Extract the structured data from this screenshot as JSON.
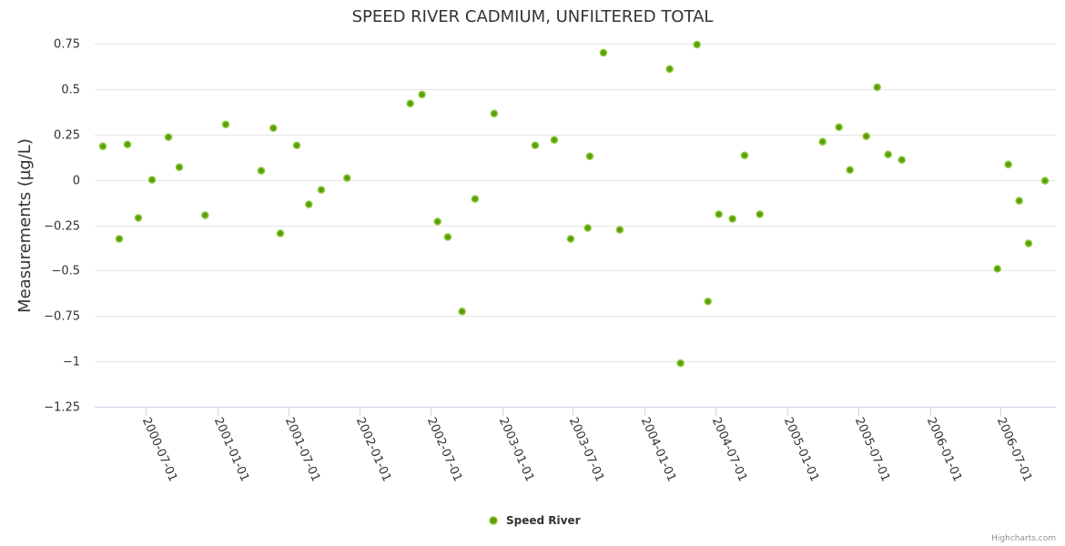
{
  "chart_data": {
    "type": "scatter",
    "title": "SPEED RIVER CADMIUM, UNFILTERED TOTAL",
    "xlabel": "",
    "ylabel": "Measurements (µg/L)",
    "ylim": [
      -1.25,
      0.75
    ],
    "xlim": [
      "2000-02-21",
      "2006-11-20"
    ],
    "yticks": [
      0.75,
      0.5,
      0.25,
      0,
      -0.25,
      -0.5,
      -0.75,
      -1,
      -1.25
    ],
    "ytick_labels": [
      "0.75",
      "0.5",
      "0.25",
      "0",
      "−0.25",
      "−0.5",
      "−0.75",
      "−1",
      "−1.25"
    ],
    "xticks": [
      "2000-07-01",
      "2001-01-01",
      "2001-07-01",
      "2002-01-01",
      "2002-07-01",
      "2003-01-01",
      "2003-07-01",
      "2004-01-01",
      "2004-07-01",
      "2005-01-01",
      "2005-07-01",
      "2006-01-01",
      "2006-07-01"
    ],
    "grid": true,
    "legend_position": "bottom-center",
    "series": [
      {
        "name": "Speed River",
        "color": "#5a9e0a",
        "points": [
          [
            "2000-03-13",
            0.185
          ],
          [
            "2000-04-24",
            -0.325
          ],
          [
            "2000-05-15",
            0.195
          ],
          [
            "2000-06-12",
            -0.21
          ],
          [
            "2000-07-17",
            0.0
          ],
          [
            "2000-08-28",
            0.235
          ],
          [
            "2000-09-25",
            0.07
          ],
          [
            "2000-11-30",
            -0.195
          ],
          [
            "2001-01-22",
            0.305
          ],
          [
            "2001-04-23",
            0.05
          ],
          [
            "2001-05-24",
            0.285
          ],
          [
            "2001-06-11",
            -0.295
          ],
          [
            "2001-07-23",
            0.19
          ],
          [
            "2001-08-23",
            -0.135
          ],
          [
            "2001-09-24",
            -0.055
          ],
          [
            "2001-11-29",
            0.01
          ],
          [
            "2002-05-10",
            0.42
          ],
          [
            "2002-06-09",
            0.47
          ],
          [
            "2002-07-19",
            -0.23
          ],
          [
            "2002-08-14",
            -0.315
          ],
          [
            "2002-09-20",
            -0.725
          ],
          [
            "2002-10-23",
            -0.105
          ],
          [
            "2002-12-11",
            0.365
          ],
          [
            "2003-03-26",
            0.19
          ],
          [
            "2003-05-14",
            0.22
          ],
          [
            "2003-06-25",
            -0.325
          ],
          [
            "2003-08-08",
            -0.265
          ],
          [
            "2003-08-13",
            0.13
          ],
          [
            "2003-09-17",
            0.7
          ],
          [
            "2003-10-29",
            -0.275
          ],
          [
            "2004-03-05",
            0.61
          ],
          [
            "2004-04-02",
            -1.01
          ],
          [
            "2004-05-14",
            0.745
          ],
          [
            "2004-06-11",
            -0.67
          ],
          [
            "2004-07-09",
            -0.19
          ],
          [
            "2004-08-13",
            -0.215
          ],
          [
            "2004-09-13",
            0.135
          ],
          [
            "2004-10-22",
            -0.19
          ],
          [
            "2005-04-01",
            0.21
          ],
          [
            "2005-05-13",
            0.29
          ],
          [
            "2005-06-10",
            0.055
          ],
          [
            "2005-07-22",
            0.24
          ],
          [
            "2005-08-19",
            0.51
          ],
          [
            "2005-09-16",
            0.14
          ],
          [
            "2005-10-21",
            0.11
          ],
          [
            "2006-06-23",
            -0.49
          ],
          [
            "2006-07-21",
            0.085
          ],
          [
            "2006-08-18",
            -0.115
          ],
          [
            "2006-09-11",
            -0.35
          ],
          [
            "2006-10-23",
            -0.005
          ]
        ]
      }
    ]
  },
  "credits": "Highcharts.com"
}
